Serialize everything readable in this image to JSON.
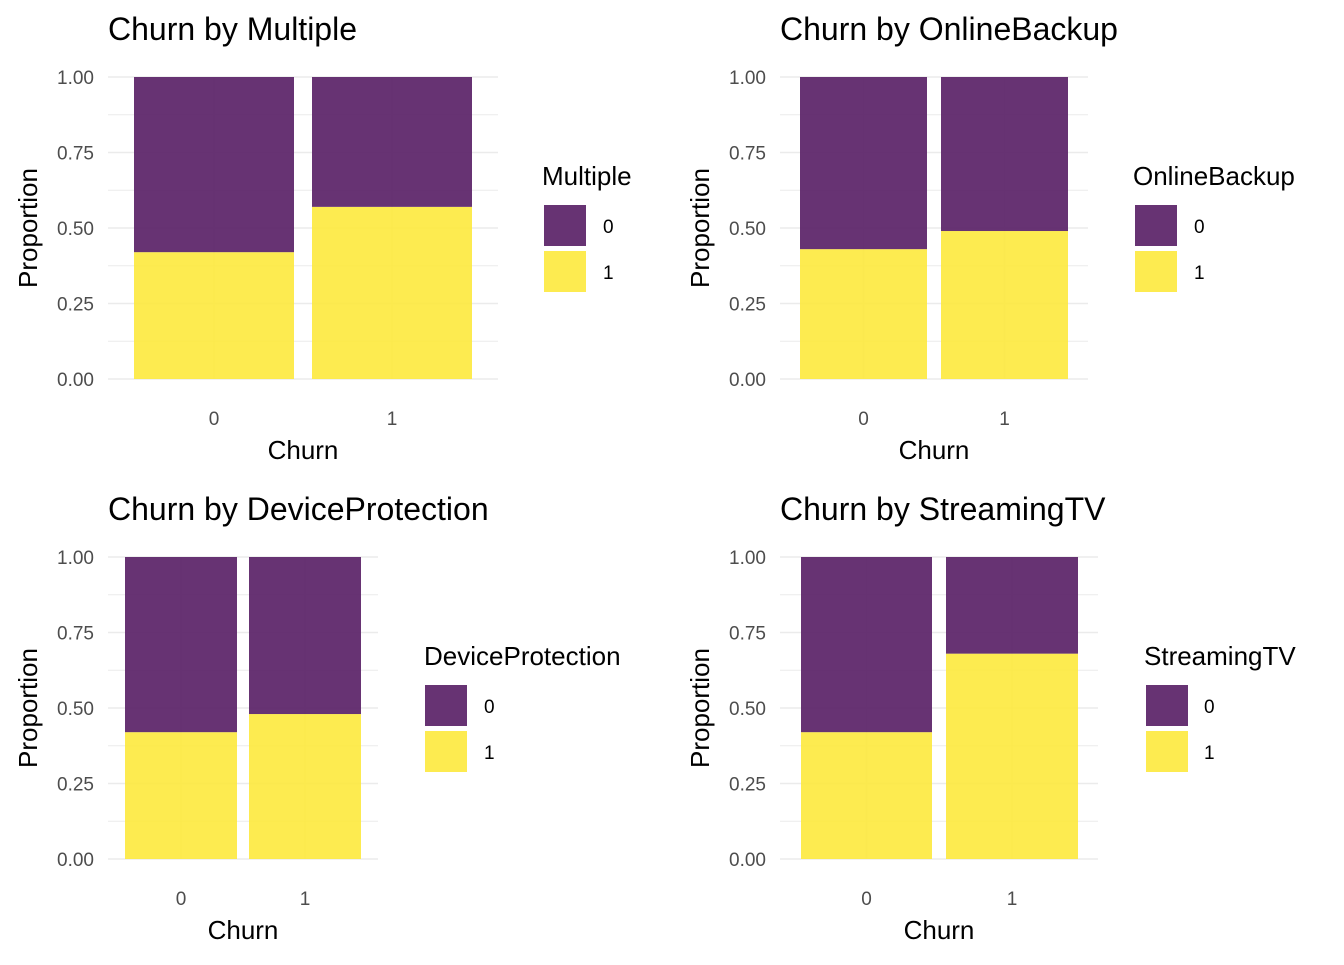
{
  "colors": {
    "level_0": "#5b2468",
    "level_1": "#fde93d",
    "grid": "#ebebeb",
    "tick_text": "#4d4d4d",
    "text": "#000000"
  },
  "chart_data": [
    {
      "type": "bar",
      "stacked": true,
      "title": "Churn by Multiple",
      "xlabel": "Churn",
      "ylabel": "Proportion",
      "categories": [
        "0",
        "1"
      ],
      "ylim": [
        0,
        1
      ],
      "yticks": [
        "0.00",
        "0.25",
        "0.50",
        "0.75",
        "1.00"
      ],
      "legend_title": "Multiple",
      "legend_placement": "right",
      "series": [
        {
          "name": "0",
          "values": [
            0.58,
            0.43
          ]
        },
        {
          "name": "1",
          "values": [
            0.42,
            0.57
          ]
        }
      ]
    },
    {
      "type": "bar",
      "stacked": true,
      "title": "Churn by OnlineBackup",
      "xlabel": "Churn",
      "ylabel": "Proportion",
      "categories": [
        "0",
        "1"
      ],
      "ylim": [
        0,
        1
      ],
      "yticks": [
        "0.00",
        "0.25",
        "0.50",
        "0.75",
        "1.00"
      ],
      "legend_title": "OnlineBackup",
      "legend_placement": "right",
      "series": [
        {
          "name": "0",
          "values": [
            0.57,
            0.51
          ]
        },
        {
          "name": "1",
          "values": [
            0.43,
            0.49
          ]
        }
      ]
    },
    {
      "type": "bar",
      "stacked": true,
      "title": "Churn by DeviceProtection",
      "xlabel": "Churn",
      "ylabel": "Proportion",
      "categories": [
        "0",
        "1"
      ],
      "ylim": [
        0,
        1
      ],
      "yticks": [
        "0.00",
        "0.25",
        "0.50",
        "0.75",
        "1.00"
      ],
      "legend_title": "DeviceProtection",
      "legend_placement": "right",
      "series": [
        {
          "name": "0",
          "values": [
            0.58,
            0.52
          ]
        },
        {
          "name": "1",
          "values": [
            0.42,
            0.48
          ]
        }
      ]
    },
    {
      "type": "bar",
      "stacked": true,
      "title": "Churn by StreamingTV",
      "xlabel": "Churn",
      "ylabel": "Proportion",
      "categories": [
        "0",
        "1"
      ],
      "ylim": [
        0,
        1
      ],
      "yticks": [
        "0.00",
        "0.25",
        "0.50",
        "0.75",
        "1.00"
      ],
      "legend_title": "StreamingTV",
      "legend_placement": "right",
      "series": [
        {
          "name": "0",
          "values": [
            0.58,
            0.32
          ]
        },
        {
          "name": "1",
          "values": [
            0.42,
            0.68
          ]
        }
      ]
    }
  ]
}
